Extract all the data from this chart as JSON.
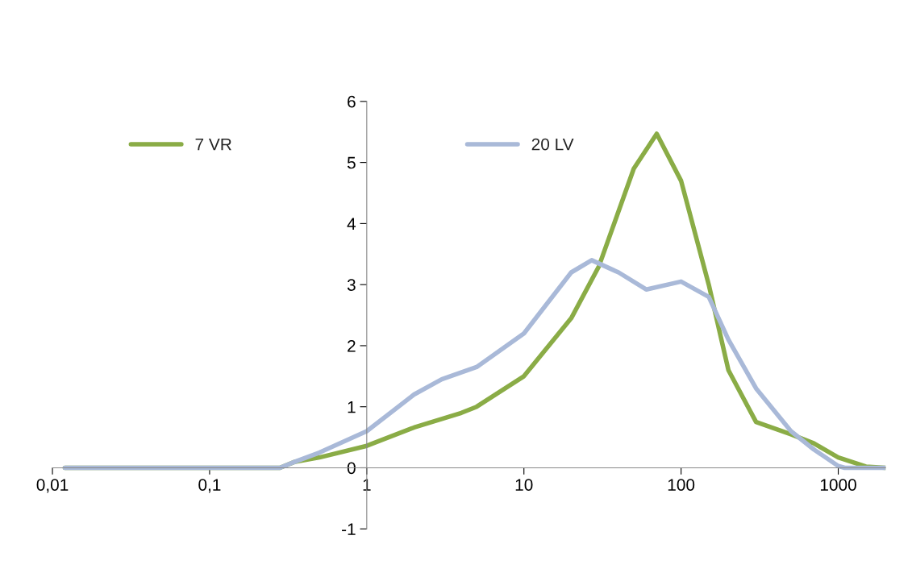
{
  "chart_data": {
    "type": "line",
    "log": "x",
    "xlim": [
      0.01,
      2000
    ],
    "ylim": [
      -1,
      6
    ],
    "xticks": [
      {
        "value": 0.01,
        "label": "0,01"
      },
      {
        "value": 0.1,
        "label": "0,1"
      },
      1,
      10,
      100,
      1000
    ],
    "yticks": [
      -1,
      0,
      1,
      2,
      3,
      4,
      5,
      6
    ],
    "grid": false,
    "legend": "top",
    "line_style": "solid",
    "marker": "none",
    "series": [
      {
        "name": "7 VR",
        "color": "#8aac46",
        "x": [
          0.012,
          0.28,
          0.35,
          0.5,
          1,
          2,
          4,
          5,
          10,
          20,
          30,
          50,
          70,
          100,
          150,
          200,
          300,
          500,
          700,
          1000,
          1500,
          2000
        ],
        "values": [
          0,
          0,
          0.1,
          0.17,
          0.36,
          0.66,
          0.9,
          1.0,
          1.5,
          2.45,
          3.3,
          4.9,
          5.47,
          4.7,
          3.0,
          1.6,
          0.75,
          0.55,
          0.4,
          0.17,
          0.02,
          0
        ]
      },
      {
        "name": "20 LV",
        "color": "#a9b9d8",
        "x": [
          0.012,
          0.28,
          0.35,
          0.5,
          1,
          2,
          3,
          5,
          10,
          20,
          27,
          40,
          60,
          100,
          150,
          200,
          300,
          500,
          700,
          1000,
          1100,
          2000
        ],
        "values": [
          0,
          0,
          0.1,
          0.25,
          0.6,
          1.2,
          1.45,
          1.65,
          2.2,
          3.2,
          3.4,
          3.2,
          2.92,
          3.05,
          2.8,
          2.1,
          1.3,
          0.6,
          0.3,
          0.03,
          0,
          0
        ]
      }
    ]
  }
}
